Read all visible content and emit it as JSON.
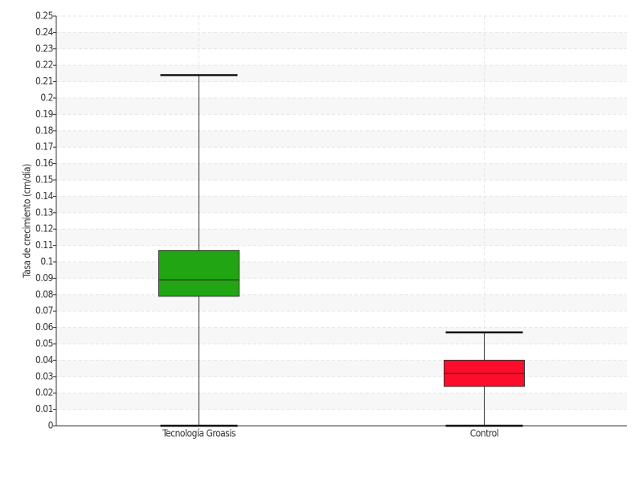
{
  "chart_data": {
    "type": "box",
    "y_label": "Tasa de crecimiento (cm/día)",
    "categories": [
      "Tecnología Groasis",
      "Control"
    ],
    "min": [
      0,
      0
    ],
    "q1": [
      0.079,
      0.024
    ],
    "median": [
      0.089,
      0.032
    ],
    "q3": [
      0.107,
      0.04
    ],
    "max": [
      0.214,
      0.057
    ],
    "colors": [
      "#22a512",
      "#fc0d2c"
    ],
    "ylim": [
      0,
      0.25
    ],
    "yticks": [
      0,
      0.01,
      0.02,
      0.03,
      0.04,
      0.05,
      0.06,
      0.07,
      0.08,
      0.09,
      0.1,
      0.11,
      0.12,
      0.13,
      0.14,
      0.15,
      0.16,
      0.17,
      0.18,
      0.19,
      0.2,
      0.21,
      0.22,
      0.23,
      0.24,
      0.25
    ],
    "grid": true
  }
}
